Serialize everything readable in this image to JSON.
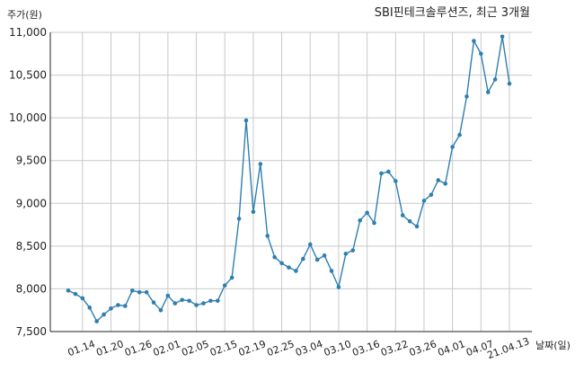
{
  "chart_data": {
    "type": "line",
    "title": "SBI핀테크솔루션즈, 최근 3개월",
    "ylabel": "주가(원)",
    "xlabel": "날짜(일)",
    "ylim": [
      7500,
      11000
    ],
    "yticks": [
      7500,
      8000,
      8500,
      9000,
      9500,
      10000,
      10500,
      11000
    ],
    "ytick_labels": [
      "7,500",
      "8,000",
      "8,500",
      "9,000",
      "9,500",
      "10,000",
      "10,500",
      "11,000"
    ],
    "grid": true,
    "color": "#2e7fb0",
    "xtick_labels": [
      {
        "index": 2,
        "label": "01.14"
      },
      {
        "index": 6,
        "label": "01.20"
      },
      {
        "index": 10,
        "label": "01.26"
      },
      {
        "index": 14,
        "label": "02.01"
      },
      {
        "index": 18,
        "label": "02.05"
      },
      {
        "index": 22,
        "label": "02.15"
      },
      {
        "index": 26,
        "label": "02.19"
      },
      {
        "index": 30,
        "label": "02.25"
      },
      {
        "index": 34,
        "label": "03.04"
      },
      {
        "index": 38,
        "label": "03.10"
      },
      {
        "index": 42,
        "label": "03.16"
      },
      {
        "index": 46,
        "label": "03.22"
      },
      {
        "index": 50,
        "label": "03.26"
      },
      {
        "index": 54,
        "label": "04.01"
      },
      {
        "index": 58,
        "label": "04.07"
      },
      {
        "index": 62,
        "label": "21.04.13"
      }
    ],
    "values": [
      7980,
      7940,
      7890,
      7780,
      7620,
      7700,
      7770,
      7810,
      7800,
      7980,
      7960,
      7960,
      7840,
      7750,
      7920,
      7830,
      7870,
      7860,
      7810,
      7830,
      7860,
      7860,
      8040,
      8130,
      8820,
      9970,
      8900,
      9460,
      8620,
      8370,
      8300,
      8250,
      8210,
      8350,
      8520,
      8340,
      8390,
      8210,
      8020,
      8410,
      8450,
      8800,
      8890,
      8770,
      9350,
      9370,
      9260,
      8860,
      8790,
      8730,
      9030,
      9100,
      9270,
      9230,
      9660,
      9800,
      10250,
      10900,
      10750,
      10300,
      10450,
      10950,
      10400
    ]
  }
}
